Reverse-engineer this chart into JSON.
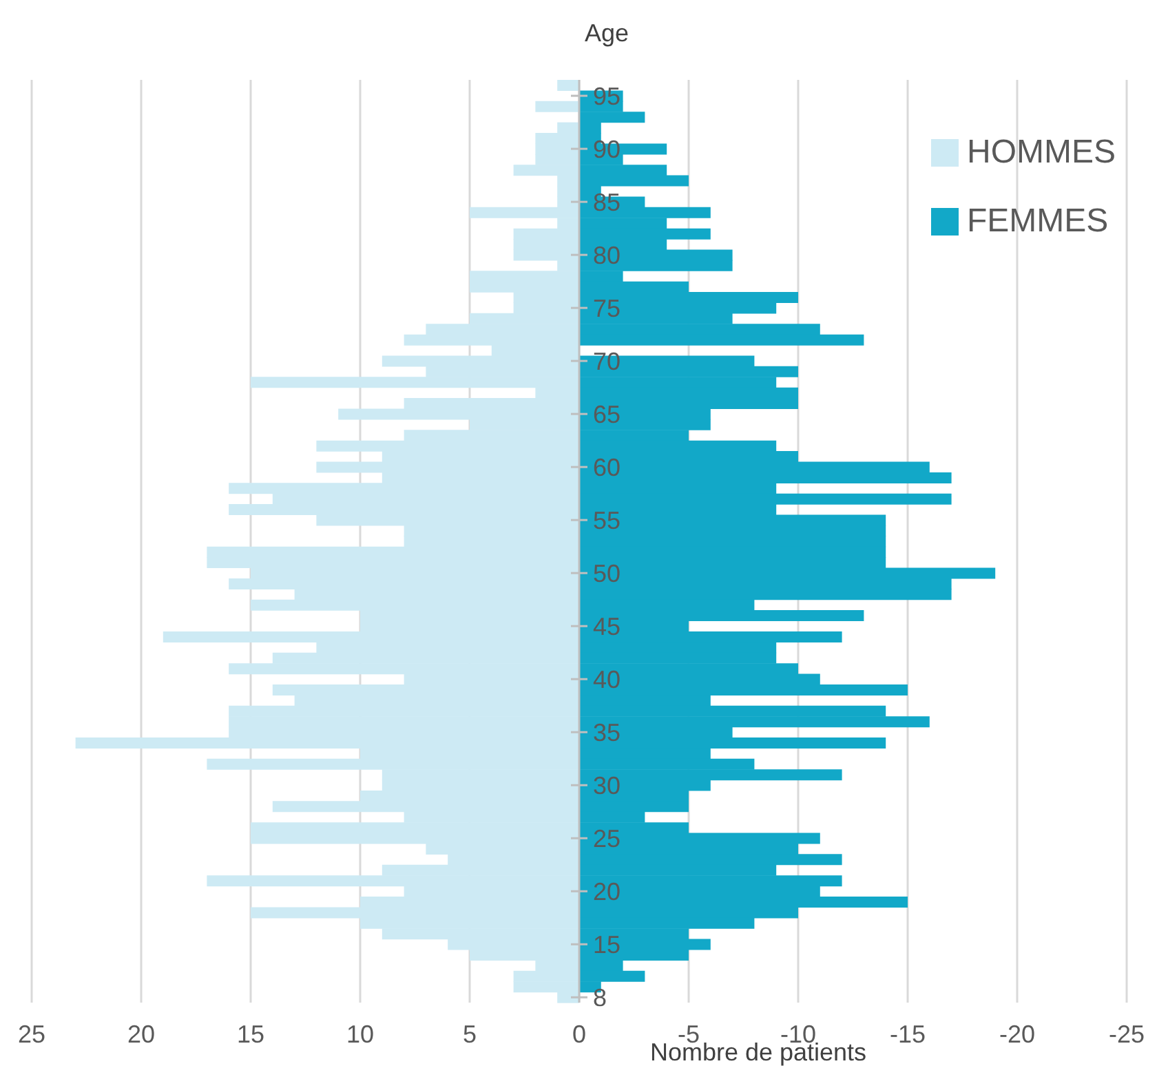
{
  "chart_data": {
    "type": "bar",
    "orientation": "horizontal",
    "stacked": true,
    "ylabel": "Age",
    "xlabel": "Nombre de patients",
    "categories": [
      null,
      "95",
      null,
      null,
      null,
      null,
      "90",
      null,
      null,
      null,
      null,
      "85",
      null,
      null,
      null,
      null,
      "80",
      null,
      null,
      null,
      null,
      "75",
      null,
      null,
      null,
      null,
      "70",
      null,
      null,
      null,
      null,
      "65",
      null,
      null,
      null,
      null,
      "60",
      null,
      null,
      null,
      null,
      "55",
      null,
      null,
      null,
      null,
      "50",
      null,
      null,
      null,
      null,
      "45",
      null,
      null,
      null,
      null,
      "40",
      null,
      null,
      null,
      null,
      "35",
      null,
      null,
      null,
      null,
      "30",
      null,
      null,
      null,
      null,
      "25",
      null,
      null,
      null,
      null,
      "20",
      null,
      null,
      null,
      null,
      "15",
      null,
      null,
      null,
      null,
      "8"
    ],
    "series": [
      {
        "name": "HOMMES",
        "color": "#cdeaf4",
        "values": [
          1,
          0,
          2,
          0,
          1,
          2,
          2,
          2,
          3,
          1,
          1,
          1,
          5,
          1,
          3,
          3,
          3,
          1,
          5,
          5,
          3,
          3,
          5,
          7,
          8,
          4,
          9,
          7,
          15,
          2,
          8,
          11,
          5,
          8,
          12,
          9,
          12,
          9,
          16,
          14,
          16,
          12,
          8,
          8,
          17,
          17,
          15,
          16,
          13,
          15,
          10,
          10,
          19,
          12,
          14,
          16,
          8,
          14,
          13,
          16,
          16,
          16,
          23,
          10,
          17,
          9,
          9,
          10,
          14,
          8,
          15,
          15,
          7,
          6,
          9,
          17,
          8,
          10,
          15,
          10,
          9,
          6,
          5,
          2,
          3,
          3,
          1
        ]
      },
      {
        "name": "FEMMES",
        "color": "#12a8c8",
        "values": [
          0,
          -2,
          -2,
          -3,
          -1,
          -1,
          -4,
          -2,
          -4,
          -5,
          -1,
          -3,
          -6,
          -4,
          -6,
          -4,
          -7,
          -7,
          -2,
          -5,
          -10,
          -9,
          -7,
          -11,
          -13,
          0,
          -8,
          -10,
          -9,
          -10,
          -10,
          -6,
          -6,
          -5,
          -9,
          -10,
          -16,
          -17,
          -9,
          -17,
          -9,
          -14,
          -14,
          -14,
          -14,
          -14,
          -19,
          -17,
          -17,
          -8,
          -13,
          -5,
          -12,
          -9,
          -9,
          -10,
          -11,
          -15,
          -6,
          -14,
          -16,
          -7,
          -14,
          -6,
          -8,
          -12,
          -6,
          -5,
          -5,
          -3,
          -5,
          -11,
          -10,
          -12,
          -9,
          -12,
          -11,
          -15,
          -10,
          -8,
          -5,
          -6,
          -5,
          -2,
          -3,
          -1,
          0
        ]
      }
    ],
    "xlim": [
      25,
      -25
    ],
    "xticks": [
      25,
      20,
      15,
      10,
      5,
      0,
      -5,
      -10,
      -15,
      -20,
      -25
    ],
    "grid": "x",
    "legend": "top right"
  }
}
